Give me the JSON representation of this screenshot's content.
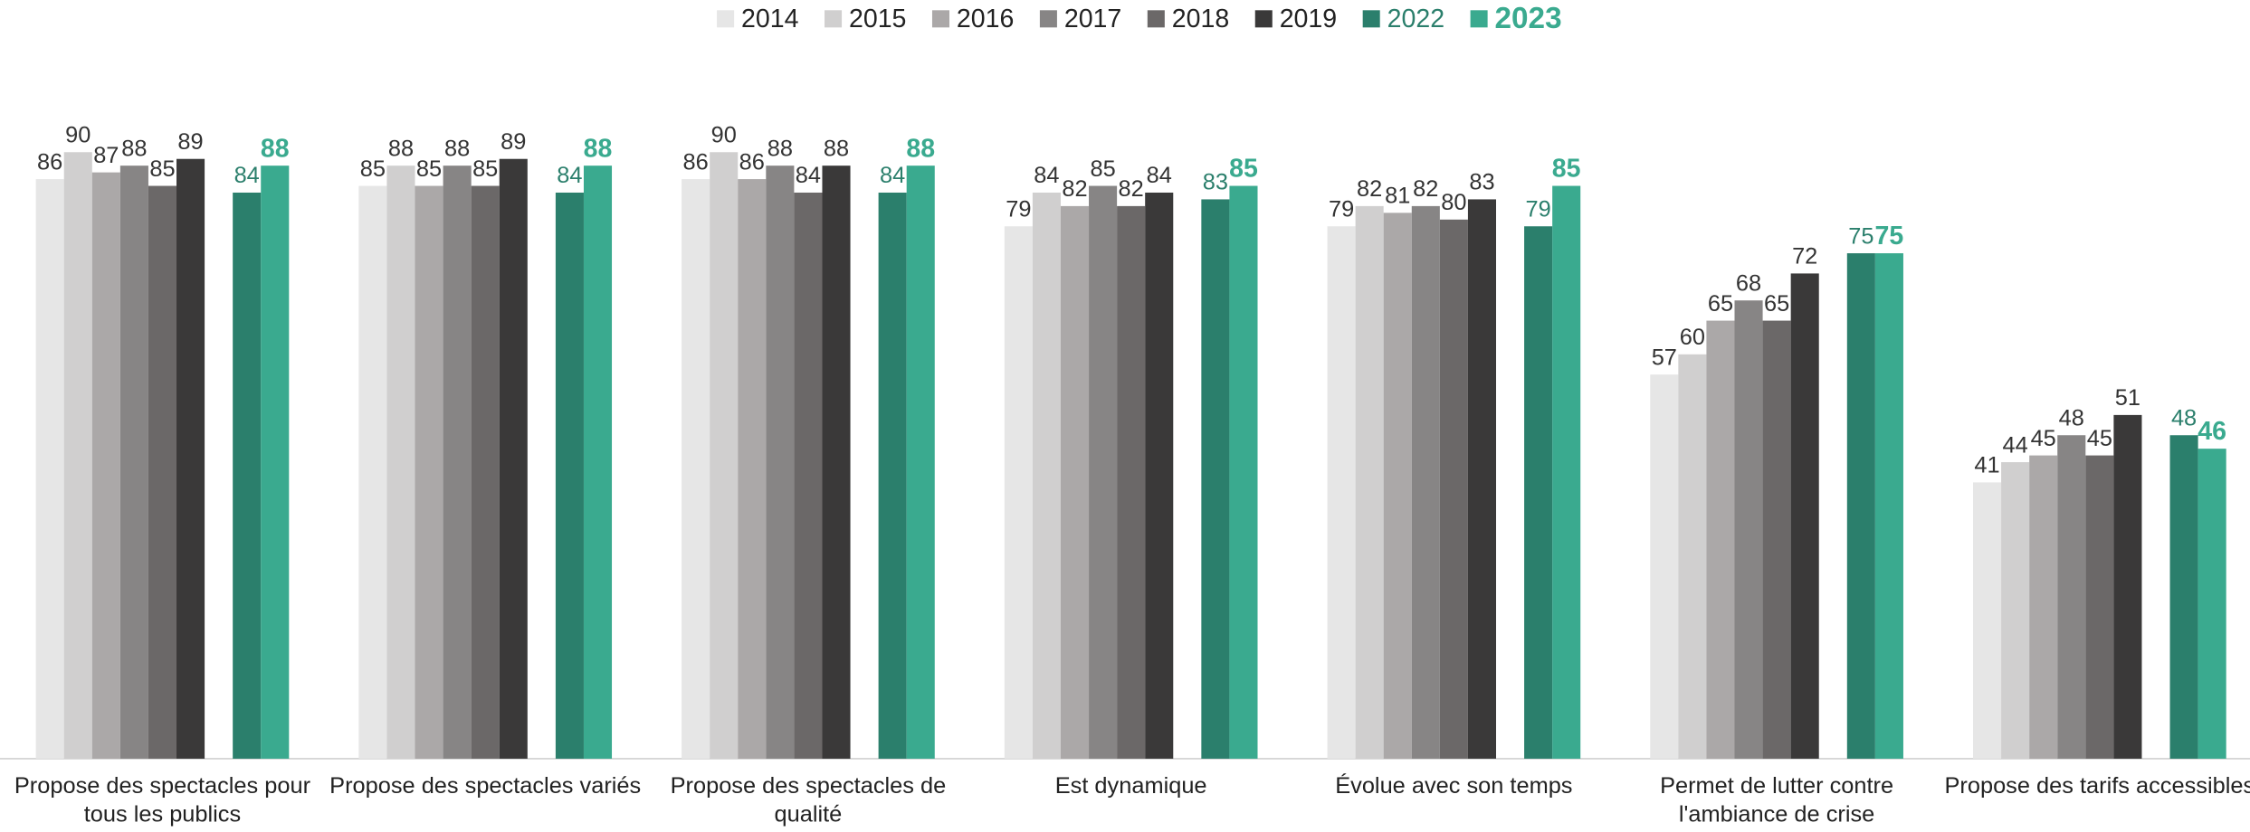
{
  "chart_data": {
    "type": "bar",
    "categories": [
      "Propose des spectacles pour tous les publics",
      "Propose des spectacles variés",
      "Propose des spectacles de qualité",
      "Est dynamique",
      "Évolue avec son temps",
      "Permet de lutter contre l'ambiance de crise",
      "Propose des tarifs accessibles"
    ],
    "series": [
      {
        "name": "2014",
        "color": "#e6e6e6",
        "values": [
          86,
          85,
          86,
          79,
          79,
          57,
          41
        ]
      },
      {
        "name": "2015",
        "color": "#d0cfcf",
        "values": [
          90,
          88,
          90,
          84,
          82,
          60,
          44
        ]
      },
      {
        "name": "2016",
        "color": "#aba8a8",
        "values": [
          87,
          85,
          86,
          82,
          81,
          65,
          45
        ]
      },
      {
        "name": "2017",
        "color": "#878585",
        "values": [
          88,
          88,
          88,
          85,
          82,
          68,
          48
        ]
      },
      {
        "name": "2018",
        "color": "#6b6868",
        "values": [
          85,
          85,
          84,
          82,
          80,
          65,
          45
        ]
      },
      {
        "name": "2019",
        "color": "#3a3939",
        "values": [
          89,
          89,
          88,
          84,
          83,
          72,
          51
        ]
      },
      {
        "name": "2022",
        "color": "#2b7f6c",
        "values": [
          84,
          84,
          84,
          83,
          79,
          75,
          48
        ]
      },
      {
        "name": "2023",
        "color": "#3aaa8f",
        "values": [
          88,
          88,
          88,
          85,
          85,
          75,
          46
        ]
      }
    ],
    "legend": "top"
  }
}
